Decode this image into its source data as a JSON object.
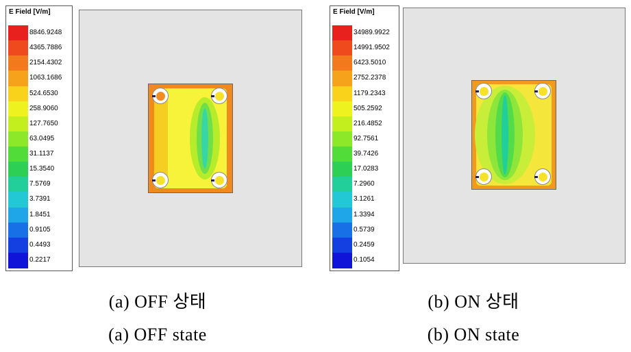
{
  "panels": [
    {
      "legend": {
        "title": "E Field [V/m]",
        "labels": [
          "8846.9248",
          "4365.7886",
          "2154.4302",
          "1063.1686",
          "524.6530",
          "258.9060",
          "127.7650",
          "63.0495",
          "31.1137",
          "15.3540",
          "7.5769",
          "3.7391",
          "1.8451",
          "0.9105",
          "0.4493",
          "0.2217"
        ]
      },
      "caption_ko": "(a)  OFF  상태",
      "caption_en": "(a)  OFF  state",
      "colors": {
        "edge": "#f08a1e",
        "field": "#f7f23a",
        "center": "#3fd86a"
      }
    },
    {
      "legend": {
        "title": "E Field [V/m]",
        "labels": [
          "34989.9922",
          "14991.9502",
          "6423.5010",
          "2752.2378",
          "1179.2343",
          "505.2592",
          "216.4852",
          "92.7561",
          "39.7426",
          "17.0283",
          "7.2960",
          "3.1261",
          "1.3394",
          "0.5739",
          "0.2459",
          "0.1054"
        ]
      },
      "caption_ko": "(b)  ON  상태",
      "caption_en": "(b)  ON  state",
      "colors": {
        "edge": "#f08a1e",
        "field": "#c8ee3a",
        "center": "#28d478"
      }
    }
  ],
  "scale_colors": [
    "#e8201e",
    "#ef4a1e",
    "#f27a1c",
    "#f6a21a",
    "#f9d21c",
    "#eef31f",
    "#c4ef1f",
    "#8ee82a",
    "#52dc3a",
    "#2ecf55",
    "#22cf9a",
    "#22c9d4",
    "#1ea6e8",
    "#1870e6",
    "#1440e2",
    "#0f14d8"
  ]
}
